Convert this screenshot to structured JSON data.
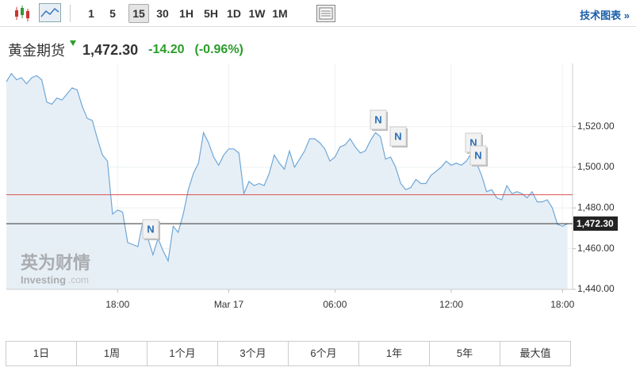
{
  "toolbar": {
    "intervals": [
      "1",
      "5",
      "15",
      "30",
      "1H",
      "5H",
      "1D",
      "1W",
      "1M"
    ],
    "active": 2,
    "right_link": "技术图表 »"
  },
  "header": {
    "name": "黄金期货",
    "price": "1,472.30",
    "change": "-14.20",
    "change_pct": "(-0.96%)"
  },
  "watermark": {
    "cn": "英为财情",
    "en": "Investing",
    "domain": ".com"
  },
  "chart_data": {
    "type": "line",
    "color": "#6fa7d8",
    "fill": "#e7eff6",
    "values": [
      1542,
      1546,
      1543,
      1544,
      1541,
      1544,
      1545,
      1543,
      1532,
      1531,
      1534,
      1533,
      1536,
      1539,
      1538,
      1530,
      1524,
      1523,
      1514,
      1506,
      1503,
      1477,
      1479,
      1478,
      1463,
      1462,
      1461,
      1473,
      1465,
      1457,
      1465,
      1459,
      1454,
      1471,
      1468,
      1477,
      1489,
      1497,
      1502,
      1517,
      1512,
      1505,
      1501,
      1506,
      1509,
      1509,
      1507,
      1487,
      1493,
      1491,
      1492,
      1491,
      1497,
      1506,
      1502,
      1499,
      1508,
      1500,
      1504,
      1508,
      1514,
      1514,
      1512,
      1509,
      1503,
      1505,
      1510,
      1511,
      1514,
      1510,
      1507,
      1508,
      1513,
      1517,
      1515,
      1504,
      1505,
      1500,
      1492,
      1489,
      1490,
      1494,
      1492,
      1492,
      1496,
      1498,
      1500,
      1503,
      1501,
      1502,
      1501,
      1503,
      1507,
      1502,
      1496,
      1488,
      1489,
      1485,
      1484,
      1491,
      1487,
      1488,
      1487,
      1485,
      1488,
      1483,
      1483,
      1484,
      1480,
      1472,
      1471,
      1472.3
    ],
    "xlim": [
      0,
      112
    ],
    "xticks": [
      {
        "value": 22,
        "label": "18:00"
      },
      {
        "value": 44,
        "label": "Mar 17"
      },
      {
        "value": 65,
        "label": "06:00"
      },
      {
        "value": 88,
        "label": "12:00"
      },
      {
        "value": 110,
        "label": "18:00"
      }
    ],
    "ylim": [
      1440,
      1551
    ],
    "yticks": [
      {
        "value": 1440,
        "label": "1,440.00"
      },
      {
        "value": 1460,
        "label": "1,460.00"
      },
      {
        "value": 1480,
        "label": "1,480.00"
      },
      {
        "value": 1500,
        "label": "1,500.00"
      },
      {
        "value": 1520,
        "label": "1,520.00"
      }
    ],
    "reference_line": {
      "value": 1486.5,
      "color": "#d9534f"
    },
    "last_price": {
      "value": 1472.3,
      "label": "1,472.30"
    },
    "annotations": [
      "N",
      "N",
      "N",
      "N",
      "N"
    ],
    "grid": true
  },
  "ranges": [
    "1日",
    "1周",
    "1个月",
    "3个月",
    "6个月",
    "1年",
    "5年",
    "最大值"
  ]
}
